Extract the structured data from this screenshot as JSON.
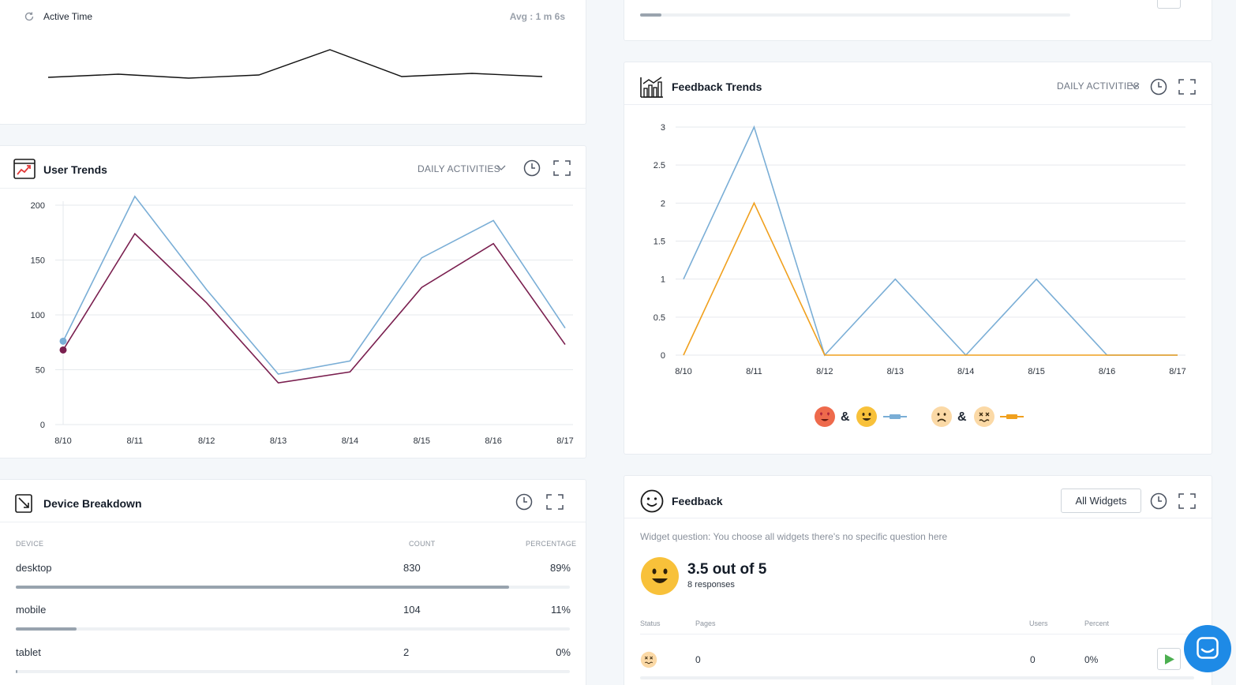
{
  "active_time": {
    "label": "Active Time",
    "avg": "Avg : 1 m 6s"
  },
  "user_trends": {
    "title": "User Trends",
    "dropdown": "DAILY ACTIVITIES",
    "colors": {
      "series_a": "#7aaed6",
      "series_b": "#7a1f4f"
    },
    "chart_data": {
      "type": "line",
      "categories": [
        "8/10",
        "8/11",
        "8/12",
        "8/13",
        "8/14",
        "8/15",
        "8/16",
        "8/17"
      ],
      "y_ticks": [
        "0",
        "50",
        "100",
        "150",
        "200"
      ],
      "ylim": [
        0,
        200
      ],
      "series": [
        {
          "name": "series-a",
          "values": [
            76,
            208,
            123,
            46,
            58,
            152,
            186,
            88
          ]
        },
        {
          "name": "series-b",
          "values": [
            68,
            174,
            111,
            38,
            48,
            125,
            165,
            73
          ]
        }
      ]
    }
  },
  "device_breakdown": {
    "title": "Device Breakdown",
    "columns": [
      "DEVICE",
      "COUNT",
      "PERCENTAGE"
    ],
    "rows": [
      {
        "device": "desktop",
        "count": "830",
        "percent": "89%",
        "share": 0.89
      },
      {
        "device": "mobile",
        "count": "104",
        "percent": "11%",
        "share": 0.11
      },
      {
        "device": "tablet",
        "count": "2",
        "percent": "0%",
        "share": 0.0
      }
    ]
  },
  "feedback_trends": {
    "title": "Feedback Trends",
    "dropdown": "DAILY ACTIVITIES",
    "legend_amp": "&",
    "colors": {
      "positive": "#7aaed6",
      "negative": "#f0a01e"
    },
    "chart_data": {
      "type": "line",
      "categories": [
        "8/10",
        "8/11",
        "8/12",
        "8/13",
        "8/14",
        "8/15",
        "8/16",
        "8/17"
      ],
      "y_ticks": [
        "0",
        "0.5",
        "1",
        "1.5",
        "2",
        "2.5",
        "3"
      ],
      "ylim": [
        0,
        3
      ],
      "series": [
        {
          "name": "positive",
          "values": [
            1,
            3,
            0,
            1,
            0,
            1,
            0,
            0
          ]
        },
        {
          "name": "negative",
          "values": [
            0,
            2,
            0,
            0,
            0,
            0,
            0,
            0
          ]
        }
      ]
    }
  },
  "feedback": {
    "title": "Feedback",
    "filter_button": "All Widgets",
    "question": "Widget question: You choose all widgets there's no specific question here",
    "score": "3.5 out of 5",
    "responses": "8 responses",
    "columns": [
      "Status",
      "Pages",
      "Users",
      "Percent"
    ],
    "row": {
      "pages": "0",
      "users": "0",
      "percent": "0%"
    }
  }
}
